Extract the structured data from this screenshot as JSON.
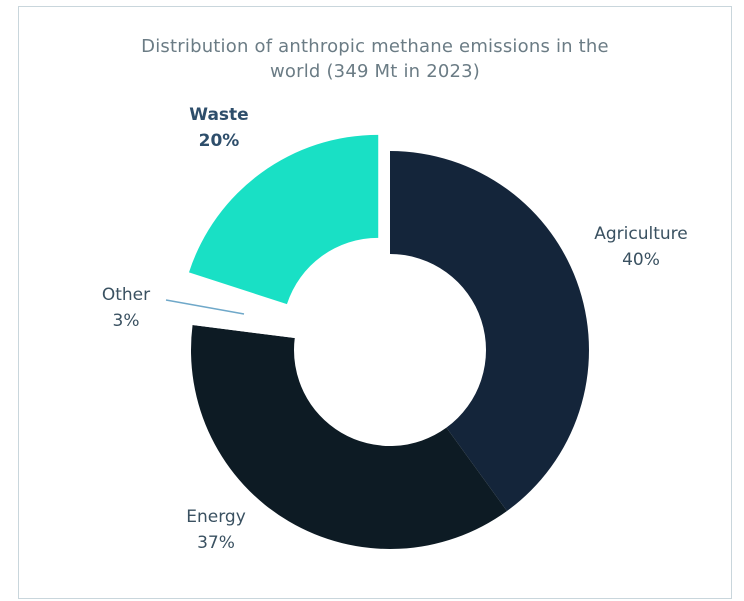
{
  "title_line1": "Distribution of anthropic methane emissions in the",
  "title_line2": "world (349 Mt in 2023)",
  "chart_data": {
    "type": "pie",
    "subtype": "donut",
    "title": "Distribution of anthropic methane emissions in the world (349 Mt in 2023)",
    "unit": "%",
    "slices": [
      {
        "name": "Agriculture",
        "label": "40%",
        "value": 40,
        "color": "#14253a",
        "exploded": false
      },
      {
        "name": "Energy",
        "label": "37%",
        "value": 37,
        "color": "#0d1b24",
        "exploded": false
      },
      {
        "name": "Other",
        "label": "3%",
        "value": 3,
        "color": "#ffffff",
        "exploded": false
      },
      {
        "name": "Waste",
        "label": "20%",
        "value": 20,
        "color": "#19e0c5",
        "exploded": true
      }
    ],
    "highlighted": "Waste",
    "leader_line_color": "#6fa8c9",
    "label_color": "#3a5161",
    "highlight_label_color": "#2e4e6b"
  }
}
